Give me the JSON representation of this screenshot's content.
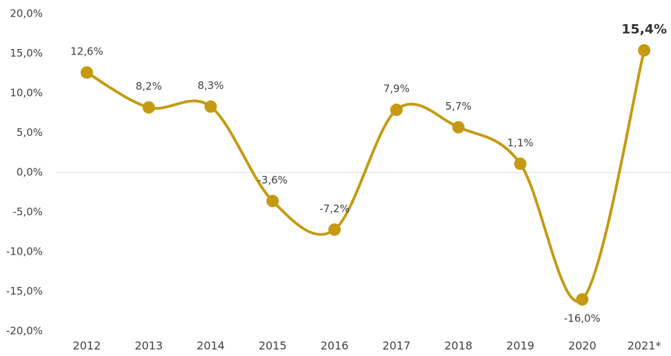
{
  "chart_data": {
    "type": "line",
    "categories": [
      "2012",
      "2013",
      "2014",
      "2015",
      "2016",
      "2017",
      "2018",
      "2019",
      "2020",
      "2021*"
    ],
    "series": [
      {
        "color": "#c59a12",
        "values": [
          12.6,
          8.2,
          8.3,
          -3.6,
          -7.2,
          7.9,
          5.7,
          1.1,
          -16.0,
          15.4
        ],
        "value_labels": [
          "12,6%",
          "8,2%",
          "8,3%",
          "-3,6%",
          "-7,2%",
          "7,9%",
          "5,7%",
          "1,1%",
          "-16,0%",
          "15,4%"
        ]
      }
    ],
    "ylim": [
      -20,
      20
    ],
    "yticks": [
      {
        "value": 20,
        "label": "20,0%"
      },
      {
        "value": 15,
        "label": "15,0%"
      },
      {
        "value": 10,
        "label": "10,0%"
      },
      {
        "value": 5,
        "label": "5,0%"
      },
      {
        "value": 0,
        "label": "0,0%"
      },
      {
        "value": -5,
        "label": "-5,0%"
      },
      {
        "value": -10,
        "label": "-10,0%"
      },
      {
        "value": -15,
        "label": "-15,0%"
      },
      {
        "value": -20,
        "label": "-20,0%"
      }
    ],
    "grid": false
  }
}
